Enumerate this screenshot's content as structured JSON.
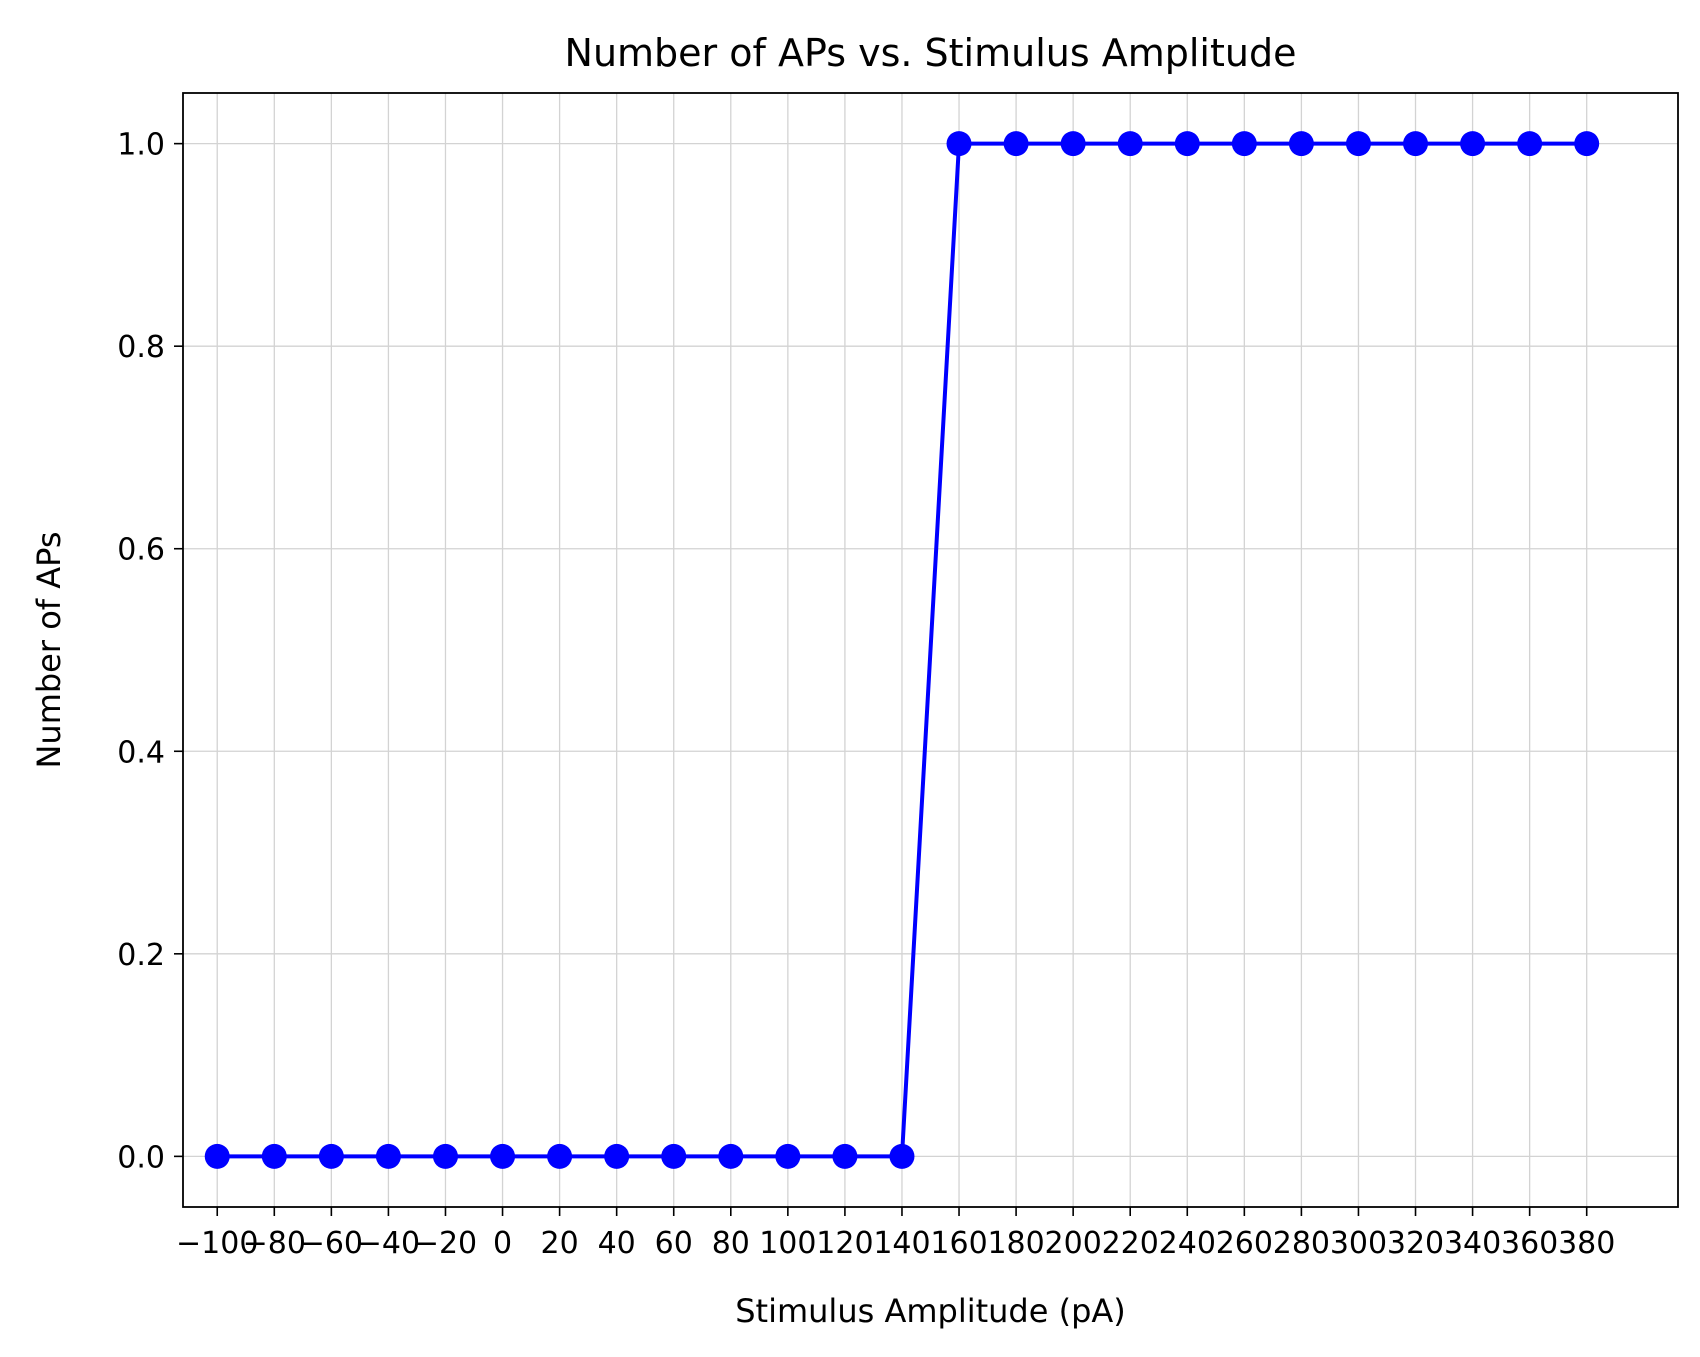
{
  "chart_data": {
    "type": "line",
    "title": "Number of APs vs. Stimulus Amplitude",
    "xlabel": "Stimulus Amplitude (pA)",
    "ylabel": "Number of APs",
    "xlim": [
      -112,
      412
    ],
    "ylim": [
      -0.05,
      1.05
    ],
    "x_ticks": [
      -100,
      -80,
      -60,
      -40,
      -20,
      0,
      20,
      40,
      60,
      80,
      100,
      120,
      140,
      160,
      180,
      200,
      220,
      240,
      260,
      280,
      300,
      320,
      340,
      360,
      380
    ],
    "x_tick_labels": [
      "−100",
      "−80",
      "−60",
      "−40",
      "−20",
      "0",
      "20",
      "40",
      "60",
      "80",
      "100",
      "120",
      "140",
      "160",
      "180",
      "200",
      "220",
      "240",
      "260",
      "280",
      "300",
      "320",
      "340",
      "360",
      "380"
    ],
    "y_ticks": [
      0.0,
      0.2,
      0.4,
      0.6,
      0.8,
      1.0
    ],
    "y_tick_labels": [
      "0.0",
      "0.2",
      "0.4",
      "0.6",
      "0.8",
      "1.0"
    ],
    "grid": true,
    "series": [
      {
        "color": "#0000ff",
        "marker": "circle",
        "x": [
          -100,
          -80,
          -60,
          -40,
          -20,
          0,
          20,
          40,
          60,
          80,
          100,
          120,
          140,
          160,
          180,
          200,
          220,
          240,
          260,
          280,
          300,
          320,
          340,
          360,
          380
        ],
        "y": [
          0,
          0,
          0,
          0,
          0,
          0,
          0,
          0,
          0,
          0,
          0,
          0,
          0,
          1,
          1,
          1,
          1,
          1,
          1,
          1,
          1,
          1,
          1,
          1,
          1
        ]
      }
    ]
  }
}
